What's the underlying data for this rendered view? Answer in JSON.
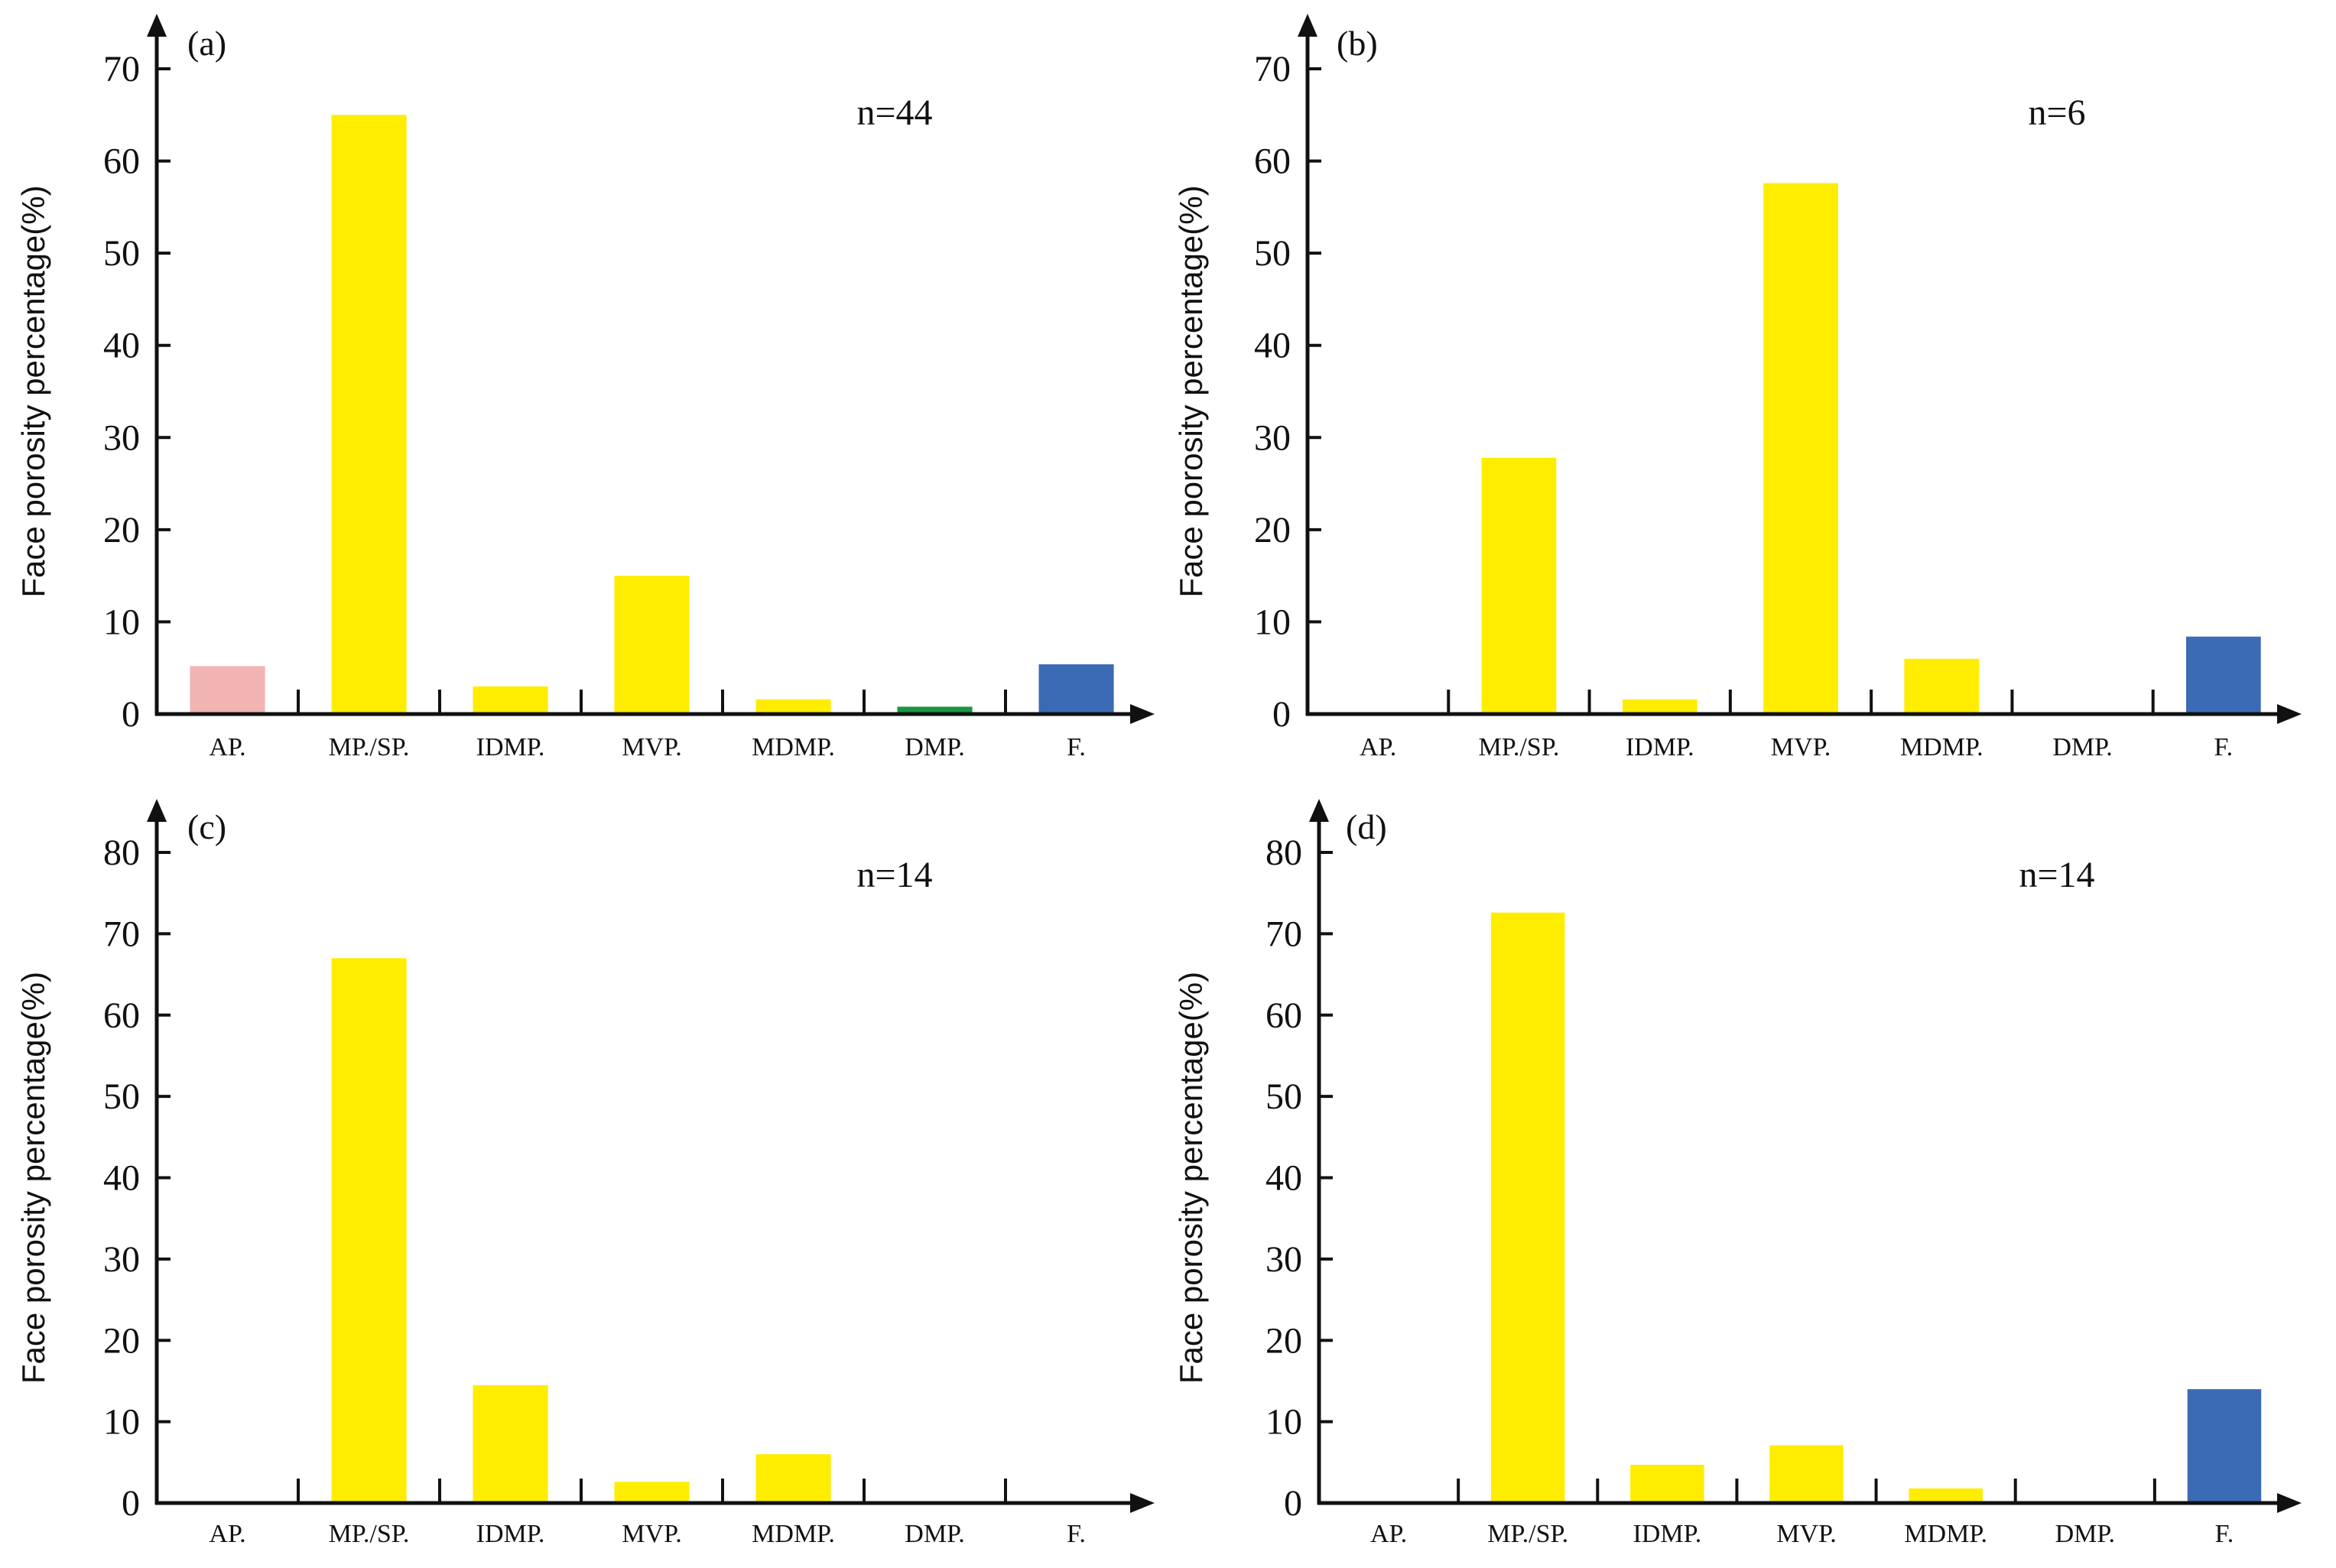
{
  "colors": {
    "yellow": "#FFED00",
    "pink": "#F2B3B3",
    "green": "#1A9641",
    "blue": "#3B6BB5",
    "axis": "#111111"
  },
  "categories": [
    "AP.",
    "MP./SP.",
    "IDMP.",
    "MVP.",
    "MDMP.",
    "DMP.",
    "F."
  ],
  "chart_data": [
    {
      "type": "bar",
      "panel_label": "(a)",
      "count_label": "n=44",
      "ylabel": "Face porosity percentage(%)",
      "xlabel": "",
      "ylim": [
        0,
        70
      ],
      "yticks": [
        0,
        10,
        20,
        30,
        40,
        50,
        60,
        70
      ],
      "categories": [
        "AP.",
        "MP./SP.",
        "IDMP.",
        "MVP.",
        "MDMP.",
        "DMP.",
        "F."
      ],
      "values": [
        5.2,
        65,
        3,
        15,
        1.6,
        0.8,
        5.4
      ],
      "bar_colors": [
        "pink",
        "yellow",
        "yellow",
        "yellow",
        "yellow",
        "green",
        "blue"
      ],
      "grid": false
    },
    {
      "type": "bar",
      "panel_label": "(b)",
      "count_label": "n=6",
      "ylabel": "Face porosity percentage(%)",
      "xlabel": "",
      "ylim": [
        0,
        70
      ],
      "yticks": [
        0,
        10,
        20,
        30,
        40,
        50,
        60,
        70
      ],
      "categories": [
        "AP.",
        "MP./SP.",
        "IDMP.",
        "MVP.",
        "MDMP.",
        "DMP.",
        "F."
      ],
      "values": [
        0,
        27.8,
        1.6,
        57.6,
        6,
        0,
        8.4
      ],
      "bar_colors": [
        "yellow",
        "yellow",
        "yellow",
        "yellow",
        "yellow",
        "yellow",
        "blue"
      ],
      "grid": false
    },
    {
      "type": "bar",
      "panel_label": "(c)",
      "count_label": "n=14",
      "ylabel": "Face porosity percentage(%)",
      "xlabel": "",
      "ylim": [
        0,
        80
      ],
      "yticks": [
        0,
        10,
        20,
        30,
        40,
        50,
        60,
        70,
        80
      ],
      "categories": [
        "AP.",
        "MP./SP.",
        "IDMP.",
        "MVP.",
        "MDMP.",
        "DMP.",
        "F."
      ],
      "values": [
        0,
        67,
        14.5,
        2.6,
        6,
        0,
        0
      ],
      "bar_colors": [
        "yellow",
        "yellow",
        "yellow",
        "yellow",
        "yellow",
        "yellow",
        "yellow"
      ],
      "grid": false
    },
    {
      "type": "bar",
      "panel_label": "(d)",
      "count_label": "n=14",
      "ylabel": "Face porosity percentage(%)",
      "xlabel": "",
      "ylim": [
        0,
        80
      ],
      "yticks": [
        0,
        10,
        20,
        30,
        40,
        50,
        60,
        70,
        80
      ],
      "categories": [
        "AP.",
        "MP./SP.",
        "IDMP.",
        "MVP.",
        "MDMP.",
        "DMP.",
        "F."
      ],
      "values": [
        0,
        72.6,
        4.7,
        7.1,
        1.8,
        0,
        14
      ],
      "bar_colors": [
        "yellow",
        "yellow",
        "yellow",
        "yellow",
        "yellow",
        "yellow",
        "blue"
      ],
      "grid": false
    }
  ]
}
